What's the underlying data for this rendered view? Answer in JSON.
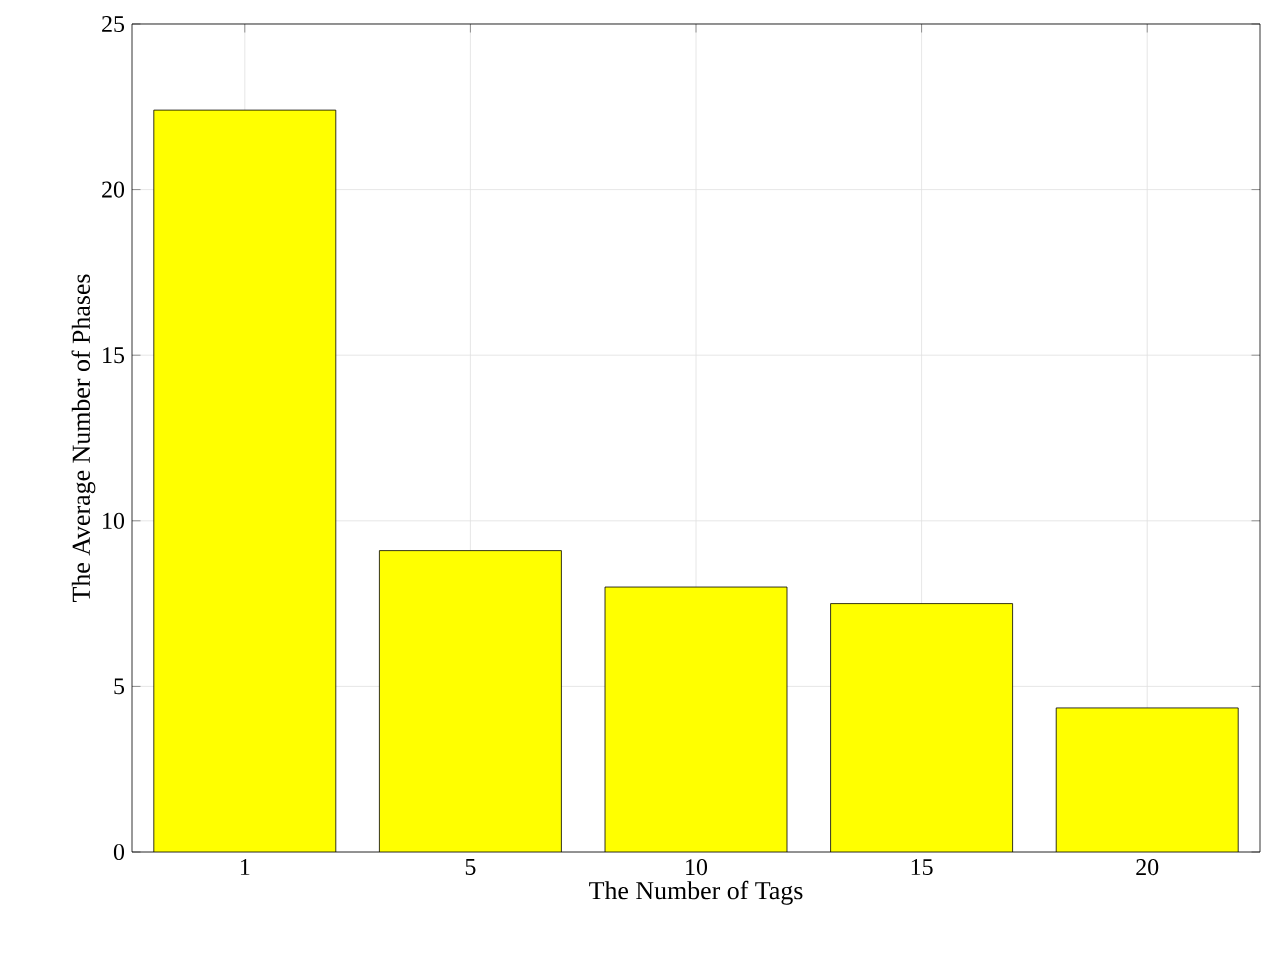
{
  "chart_data": {
    "type": "bar",
    "xlabel": "The Number of Tags",
    "ylabel": "The Average Number of Phases",
    "categories": [
      "1",
      "5",
      "10",
      "15",
      "20"
    ],
    "values": [
      22.4,
      9.1,
      8.0,
      7.5,
      4.35
    ],
    "color": "#ffff00",
    "ylim": [
      0,
      25
    ],
    "yticks": [
      0,
      5,
      10,
      15,
      20,
      25
    ],
    "grid": true
  }
}
